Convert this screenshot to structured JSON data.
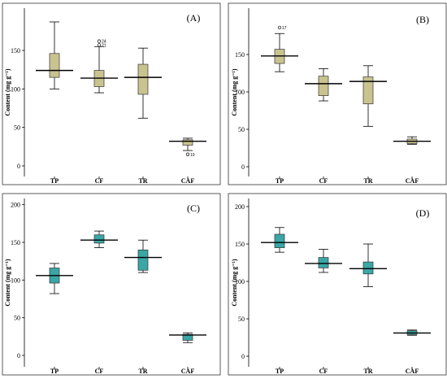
{
  "chart_data": [
    {
      "type": "box",
      "panel_label": "(A)",
      "ylabel": "Content (mg g⁻¹)",
      "ylim": [
        0,
        200
      ],
      "yticks": [
        0,
        50,
        100,
        150
      ],
      "categories": [
        "TP",
        "CF",
        "TR",
        "CAF"
      ],
      "box_color": "#c9c38f",
      "boxes": [
        {
          "min": 100,
          "q1": 115,
          "median": 124,
          "q3": 146,
          "max": 187,
          "outliers": []
        },
        {
          "min": 95,
          "q1": 103,
          "median": 114,
          "q3": 124,
          "max": 155,
          "outliers": [
            {
              "value": 162,
              "label": "24"
            },
            {
              "value": 157,
              "label": "21"
            }
          ]
        },
        {
          "min": 62,
          "q1": 93,
          "median": 115,
          "q3": 132,
          "max": 153,
          "outliers": []
        },
        {
          "min": 20,
          "q1": 27,
          "median": 32,
          "q3": 34,
          "max": 36,
          "outliers": [
            {
              "value": 15,
              "label": "10"
            }
          ]
        }
      ]
    },
    {
      "type": "box",
      "panel_label": "(B)",
      "ylabel": "Content (mg g⁻¹)",
      "ylim": [
        0,
        200
      ],
      "yticks": [
        0,
        50,
        100,
        150
      ],
      "categories": [
        "TP",
        "CF",
        "TR",
        "CAF"
      ],
      "box_color": "#c9c38f",
      "boxes": [
        {
          "min": 127,
          "q1": 138,
          "median": 148,
          "q3": 157,
          "max": 178,
          "outliers": [
            {
              "value": 186,
              "label": "17"
            }
          ]
        },
        {
          "min": 88,
          "q1": 95,
          "median": 111,
          "q3": 121,
          "max": 131,
          "outliers": []
        },
        {
          "min": 54,
          "q1": 84,
          "median": 114,
          "q3": 120,
          "max": 135,
          "outliers": []
        },
        {
          "min": 30,
          "q1": 31,
          "median": 34,
          "q3": 37,
          "max": 40,
          "outliers": []
        }
      ]
    },
    {
      "type": "box",
      "panel_label": "(C)",
      "ylabel": "Content (mg g⁻¹)",
      "ylim": [
        0,
        200
      ],
      "yticks": [
        0,
        50,
        100,
        150,
        200
      ],
      "categories": [
        "TP",
        "CF",
        "TR",
        "CAF"
      ],
      "box_color": "#3aa6a6",
      "boxes": [
        {
          "min": 82,
          "q1": 96,
          "median": 106,
          "q3": 116,
          "max": 122,
          "outliers": []
        },
        {
          "min": 143,
          "q1": 149,
          "median": 153,
          "q3": 160,
          "max": 165,
          "outliers": []
        },
        {
          "min": 110,
          "q1": 113,
          "median": 130,
          "q3": 140,
          "max": 153,
          "outliers": []
        },
        {
          "min": 17,
          "q1": 20,
          "median": 27,
          "q3": 28,
          "max": 30,
          "outliers": []
        }
      ]
    },
    {
      "type": "box",
      "panel_label": "(D)",
      "ylabel": "Content (mg g⁻¹)",
      "ylim": [
        0,
        200
      ],
      "yticks": [
        0,
        50,
        100,
        150,
        200
      ],
      "categories": [
        "TP",
        "CF",
        "TR",
        "CAF"
      ],
      "box_color": "#3aa6a6",
      "boxes": [
        {
          "min": 139,
          "q1": 145,
          "median": 152,
          "q3": 163,
          "max": 172,
          "outliers": []
        },
        {
          "min": 112,
          "q1": 118,
          "median": 124,
          "q3": 132,
          "max": 143,
          "outliers": []
        },
        {
          "min": 93,
          "q1": 110,
          "median": 117,
          "q3": 126,
          "max": 150,
          "outliers": []
        },
        {
          "min": 28,
          "q1": 29,
          "median": 31,
          "q3": 34,
          "max": 35,
          "outliers": []
        }
      ]
    }
  ]
}
